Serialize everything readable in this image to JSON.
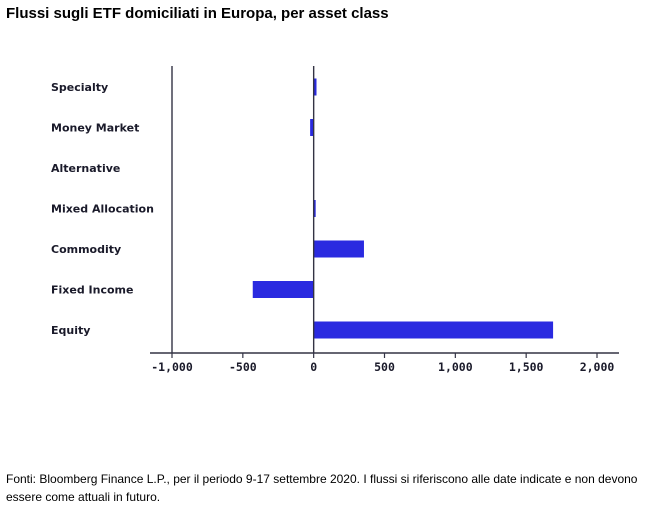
{
  "title": "Flussi sugli ETF domiciliati in Europa, per asset class",
  "source_note": "Fonti: Bloomberg Finance L.P., per il periodo 9-17 settembre 2020. I flussi si riferiscono alle date indicate e non devono essere come attuali in futuro.",
  "colors": {
    "bar": "#2a2ae0",
    "axis": "#333344",
    "text": "#1a1a2a"
  },
  "chart_data": {
    "type": "bar",
    "orientation": "horizontal",
    "categories": [
      "Specialty",
      "Money Market",
      "Alternative",
      "Mixed Allocation",
      "Commodity",
      "Fixed Income",
      "Equity"
    ],
    "values": [
      20,
      -25,
      0,
      10,
      355,
      -430,
      1690
    ],
    "title": "Flussi sugli ETF domiciliati in Europa, per asset class",
    "xlabel": "",
    "ylabel": "",
    "xlim": [
      -1000,
      2000
    ],
    "ticks": [
      -1000,
      -500,
      0,
      500,
      1000,
      1500,
      2000
    ],
    "tick_labels": [
      "-1,000",
      "-500",
      "0",
      "500",
      "1,000",
      "1,500",
      "2,000"
    ],
    "grid": false,
    "legend": "none"
  }
}
